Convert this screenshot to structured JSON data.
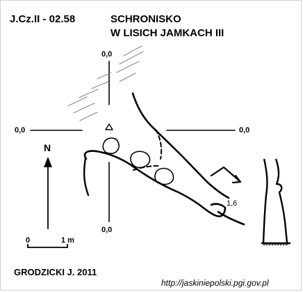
{
  "header": {
    "code": "J.Cz.II - 02.58",
    "name_line1": "SCHRONISKO",
    "name_line2": "W LISICH JAMKACH III"
  },
  "coordinates": {
    "top": "0,0",
    "left": "0,0",
    "right": "0,0",
    "bottom": "0,0"
  },
  "north_label": "N",
  "scale_bar": {
    "zero": "0",
    "length": "1 m"
  },
  "elevation_label": "1,6",
  "author": "GRODZICKI J. 2011",
  "source_url": "http://jaskiniepolski.pgi.gov.pl"
}
